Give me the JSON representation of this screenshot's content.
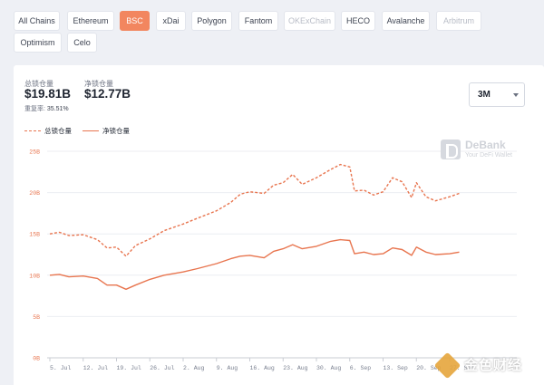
{
  "chains": [
    {
      "label": "All Chains",
      "state": "normal"
    },
    {
      "label": "Ethereum",
      "state": "normal"
    },
    {
      "label": "BSC",
      "state": "active"
    },
    {
      "label": "xDai",
      "state": "normal"
    },
    {
      "label": "Polygon",
      "state": "normal"
    },
    {
      "label": "Fantom",
      "state": "normal"
    },
    {
      "label": "OKExChain",
      "state": "disabled"
    },
    {
      "label": "HECO",
      "state": "normal"
    },
    {
      "label": "Avalanche",
      "state": "normal"
    },
    {
      "label": "Arbitrum",
      "state": "disabled"
    },
    {
      "label": "Optimism",
      "state": "normal"
    },
    {
      "label": "Celo",
      "state": "normal"
    }
  ],
  "stats": {
    "total_label": "总锁仓量",
    "total_value": "$19.81B",
    "net_label": "净锁仓量",
    "net_value": "$12.77B",
    "reuse_label": "重复率:",
    "reuse_value": "35.51%"
  },
  "range": {
    "selected": "3M"
  },
  "legend": {
    "total": "总锁仓量",
    "net": "净锁仓量"
  },
  "brand": {
    "name": "DeBank",
    "tagline": "Your DeFi Wallet"
  },
  "watermark": {
    "text": "金色财经"
  },
  "colors": {
    "accent": "#f2865f",
    "line": "#e8754f"
  },
  "chart_data": {
    "type": "line",
    "x_ticks": [
      "5. Jul",
      "12. Jul",
      "19. Jul",
      "26. Jul",
      "2. Aug",
      "9. Aug",
      "16. Aug",
      "23. Aug",
      "30. Aug",
      "6. Sep",
      "13. Sep",
      "20. Sep",
      "27. Sep"
    ],
    "y_ticks": [
      "0B",
      "5B",
      "10B",
      "15B",
      "20B",
      "25B"
    ],
    "ylim": [
      0,
      25
    ],
    "x_start": "2021-07-05",
    "series": [
      {
        "name": "总锁仓量",
        "style": "dashed",
        "values": [
          {
            "x": "2021-07-05",
            "y": 15.0
          },
          {
            "x": "2021-07-07",
            "y": 15.2
          },
          {
            "x": "2021-07-09",
            "y": 14.8
          },
          {
            "x": "2021-07-12",
            "y": 14.9
          },
          {
            "x": "2021-07-15",
            "y": 14.3
          },
          {
            "x": "2021-07-17",
            "y": 13.3
          },
          {
            "x": "2021-07-19",
            "y": 13.4
          },
          {
            "x": "2021-07-21",
            "y": 12.3
          },
          {
            "x": "2021-07-23",
            "y": 13.6
          },
          {
            "x": "2021-07-26",
            "y": 14.4
          },
          {
            "x": "2021-07-29",
            "y": 15.4
          },
          {
            "x": "2021-08-02",
            "y": 16.2
          },
          {
            "x": "2021-08-05",
            "y": 16.9
          },
          {
            "x": "2021-08-09",
            "y": 17.8
          },
          {
            "x": "2021-08-12",
            "y": 18.8
          },
          {
            "x": "2021-08-14",
            "y": 19.8
          },
          {
            "x": "2021-08-16",
            "y": 20.1
          },
          {
            "x": "2021-08-19",
            "y": 19.9
          },
          {
            "x": "2021-08-21",
            "y": 20.9
          },
          {
            "x": "2021-08-23",
            "y": 21.2
          },
          {
            "x": "2021-08-25",
            "y": 22.2
          },
          {
            "x": "2021-08-27",
            "y": 21.0
          },
          {
            "x": "2021-08-30",
            "y": 21.8
          },
          {
            "x": "2021-09-02",
            "y": 22.8
          },
          {
            "x": "2021-09-04",
            "y": 23.4
          },
          {
            "x": "2021-09-06",
            "y": 23.1
          },
          {
            "x": "2021-09-07",
            "y": 20.2
          },
          {
            "x": "2021-09-09",
            "y": 20.3
          },
          {
            "x": "2021-09-11",
            "y": 19.7
          },
          {
            "x": "2021-09-13",
            "y": 20.1
          },
          {
            "x": "2021-09-15",
            "y": 21.8
          },
          {
            "x": "2021-09-17",
            "y": 21.3
          },
          {
            "x": "2021-09-19",
            "y": 19.4
          },
          {
            "x": "2021-09-20",
            "y": 21.2
          },
          {
            "x": "2021-09-22",
            "y": 19.5
          },
          {
            "x": "2021-09-24",
            "y": 19.0
          },
          {
            "x": "2021-09-27",
            "y": 19.5
          },
          {
            "x": "2021-09-29",
            "y": 19.9
          }
        ]
      },
      {
        "name": "净锁仓量",
        "style": "solid",
        "values": [
          {
            "x": "2021-07-05",
            "y": 10.0
          },
          {
            "x": "2021-07-07",
            "y": 10.1
          },
          {
            "x": "2021-07-09",
            "y": 9.8
          },
          {
            "x": "2021-07-12",
            "y": 9.9
          },
          {
            "x": "2021-07-15",
            "y": 9.6
          },
          {
            "x": "2021-07-17",
            "y": 8.8
          },
          {
            "x": "2021-07-19",
            "y": 8.8
          },
          {
            "x": "2021-07-21",
            "y": 8.3
          },
          {
            "x": "2021-07-23",
            "y": 8.8
          },
          {
            "x": "2021-07-26",
            "y": 9.5
          },
          {
            "x": "2021-07-29",
            "y": 10.0
          },
          {
            "x": "2021-08-02",
            "y": 10.4
          },
          {
            "x": "2021-08-05",
            "y": 10.8
          },
          {
            "x": "2021-08-09",
            "y": 11.4
          },
          {
            "x": "2021-08-12",
            "y": 12.0
          },
          {
            "x": "2021-08-14",
            "y": 12.3
          },
          {
            "x": "2021-08-16",
            "y": 12.4
          },
          {
            "x": "2021-08-19",
            "y": 12.1
          },
          {
            "x": "2021-08-21",
            "y": 12.9
          },
          {
            "x": "2021-08-23",
            "y": 13.2
          },
          {
            "x": "2021-08-25",
            "y": 13.7
          },
          {
            "x": "2021-08-27",
            "y": 13.2
          },
          {
            "x": "2021-08-30",
            "y": 13.5
          },
          {
            "x": "2021-09-02",
            "y": 14.1
          },
          {
            "x": "2021-09-04",
            "y": 14.3
          },
          {
            "x": "2021-09-06",
            "y": 14.2
          },
          {
            "x": "2021-09-07",
            "y": 12.6
          },
          {
            "x": "2021-09-09",
            "y": 12.8
          },
          {
            "x": "2021-09-11",
            "y": 12.5
          },
          {
            "x": "2021-09-13",
            "y": 12.6
          },
          {
            "x": "2021-09-15",
            "y": 13.3
          },
          {
            "x": "2021-09-17",
            "y": 13.1
          },
          {
            "x": "2021-09-19",
            "y": 12.4
          },
          {
            "x": "2021-09-20",
            "y": 13.4
          },
          {
            "x": "2021-09-22",
            "y": 12.8
          },
          {
            "x": "2021-09-24",
            "y": 12.5
          },
          {
            "x": "2021-09-27",
            "y": 12.6
          },
          {
            "x": "2021-09-29",
            "y": 12.8
          }
        ]
      }
    ],
    "grid": true,
    "legend": "top-left"
  }
}
